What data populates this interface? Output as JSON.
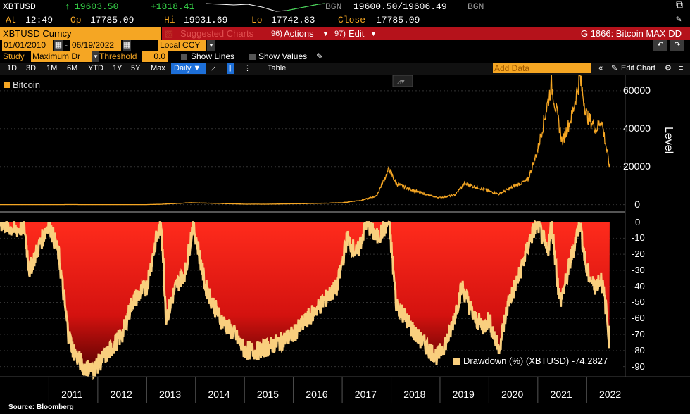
{
  "ticker": {
    "symbol": "XBTUSD",
    "arrow": "↑",
    "last": "19603.50",
    "change": "+1818.41",
    "bgn1": "BGN",
    "bid_ask": "19600.50/19606.49",
    "bgn2": "BGN",
    "at_label": "At",
    "at": "12:49",
    "op_label": "Op",
    "op": "17785.09",
    "hi_label": "Hi",
    "hi": "19931.69",
    "lo_label": "Lo",
    "lo": "17742.83",
    "close_label": "Close",
    "close": "17785.09"
  },
  "toolbar": {
    "security": "XBTUSD Curncy",
    "suggested": "Suggested Charts",
    "actions_num": "96)",
    "actions": "Actions",
    "edit_num": "97)",
    "edit": "Edit",
    "chart_id": "G 1866: Bitcoin MAX DD"
  },
  "dates": {
    "start": "01/01/2010",
    "end": "06/19/2022",
    "currency": "Local CCY"
  },
  "study": {
    "label": "Study",
    "value": "Maximum Dr",
    "threshold_label": "Threshold",
    "threshold": "0.0",
    "show_lines": "Show Lines",
    "show_values": "Show Values"
  },
  "periods": [
    "1D",
    "3D",
    "1M",
    "6M",
    "YTD",
    "1Y",
    "5Y",
    "Max"
  ],
  "frequency": "Daily",
  "table_label": "Table",
  "add_data_placeholder": "Add Data",
  "edit_chart": "Edit Chart",
  "colors": {
    "accent": "#f5a623",
    "red": "#b5121b",
    "drawdown_fill": "#ff2a1a",
    "drawdown_line": "#f9cf7e"
  },
  "chart_data": [
    {
      "type": "line",
      "series": [
        {
          "name": "Bitcoin"
        }
      ],
      "ylabel": "Level",
      "yticks": [
        0,
        20000,
        40000,
        60000
      ],
      "ylim": [
        -2000,
        67000
      ],
      "x": [
        2010.0,
        2010.5,
        2011.0,
        2011.45,
        2011.9,
        2012.5,
        2013.0,
        2013.3,
        2013.9,
        2014.5,
        2015.0,
        2015.5,
        2016.0,
        2016.5,
        2017.0,
        2017.4,
        2017.7,
        2017.96,
        2018.1,
        2018.45,
        2018.9,
        2019.0,
        2019.3,
        2019.5,
        2019.9,
        2020.2,
        2020.5,
        2020.8,
        2021.0,
        2021.28,
        2021.5,
        2021.7,
        2021.86,
        2022.0,
        2022.2,
        2022.3,
        2022.47
      ],
      "values": [
        0,
        0,
        1,
        30,
        3,
        10,
        15,
        200,
        1000,
        600,
        250,
        250,
        430,
        650,
        1000,
        2300,
        4500,
        19000,
        11000,
        7500,
        4000,
        3700,
        5000,
        11000,
        8000,
        5500,
        9500,
        13000,
        29000,
        63000,
        33000,
        47000,
        67000,
        47000,
        40000,
        45000,
        19600
      ]
    },
    {
      "type": "area",
      "series": [
        {
          "name": "Drawdown (%) (XBTUSD)",
          "last": "-74.2827"
        }
      ],
      "yticks": [
        0,
        -10,
        -20,
        -30,
        -40,
        -50,
        -60,
        -70,
        -80,
        -90
      ],
      "ylim": [
        -95,
        2
      ],
      "x": [
        2010.0,
        2010.3,
        2010.5,
        2010.6,
        2010.8,
        2011.0,
        2011.2,
        2011.4,
        2011.5,
        2011.7,
        2011.9,
        2012.2,
        2012.5,
        2012.7,
        2013.0,
        2013.2,
        2013.3,
        2013.4,
        2013.6,
        2013.8,
        2013.95,
        2014.2,
        2014.5,
        2014.8,
        2015.0,
        2015.3,
        2015.7,
        2016.0,
        2016.3,
        2016.6,
        2016.9,
        2017.1,
        2017.3,
        2017.5,
        2017.7,
        2017.96,
        2018.1,
        2018.3,
        2018.5,
        2018.8,
        2018.95,
        2019.2,
        2019.45,
        2019.7,
        2019.9,
        2020.0,
        2020.2,
        2020.4,
        2020.6,
        2020.85,
        2021.0,
        2021.2,
        2021.28,
        2021.45,
        2021.55,
        2021.7,
        2021.86,
        2022.0,
        2022.15,
        2022.3,
        2022.4,
        2022.47
      ],
      "values": [
        0,
        -5,
        -3,
        -30,
        -15,
        0,
        -20,
        -70,
        -80,
        -90,
        -92,
        -82,
        -70,
        -50,
        -40,
        -10,
        0,
        -60,
        -40,
        -30,
        0,
        -40,
        -60,
        -70,
        -80,
        -80,
        -75,
        -70,
        -60,
        -50,
        -40,
        -10,
        -20,
        0,
        -10,
        0,
        -50,
        -60,
        -70,
        -80,
        -84,
        -70,
        -40,
        -60,
        -65,
        -60,
        -80,
        -50,
        -35,
        -10,
        0,
        -20,
        0,
        -50,
        -40,
        -20,
        0,
        -30,
        -40,
        -35,
        -55,
        -74.28
      ]
    }
  ],
  "x_axis_years": [
    "2011",
    "2012",
    "2013",
    "2014",
    "2015",
    "2016",
    "2017",
    "2018",
    "2019",
    "2020",
    "2021",
    "2022"
  ],
  "source": "Source: Bloomberg"
}
